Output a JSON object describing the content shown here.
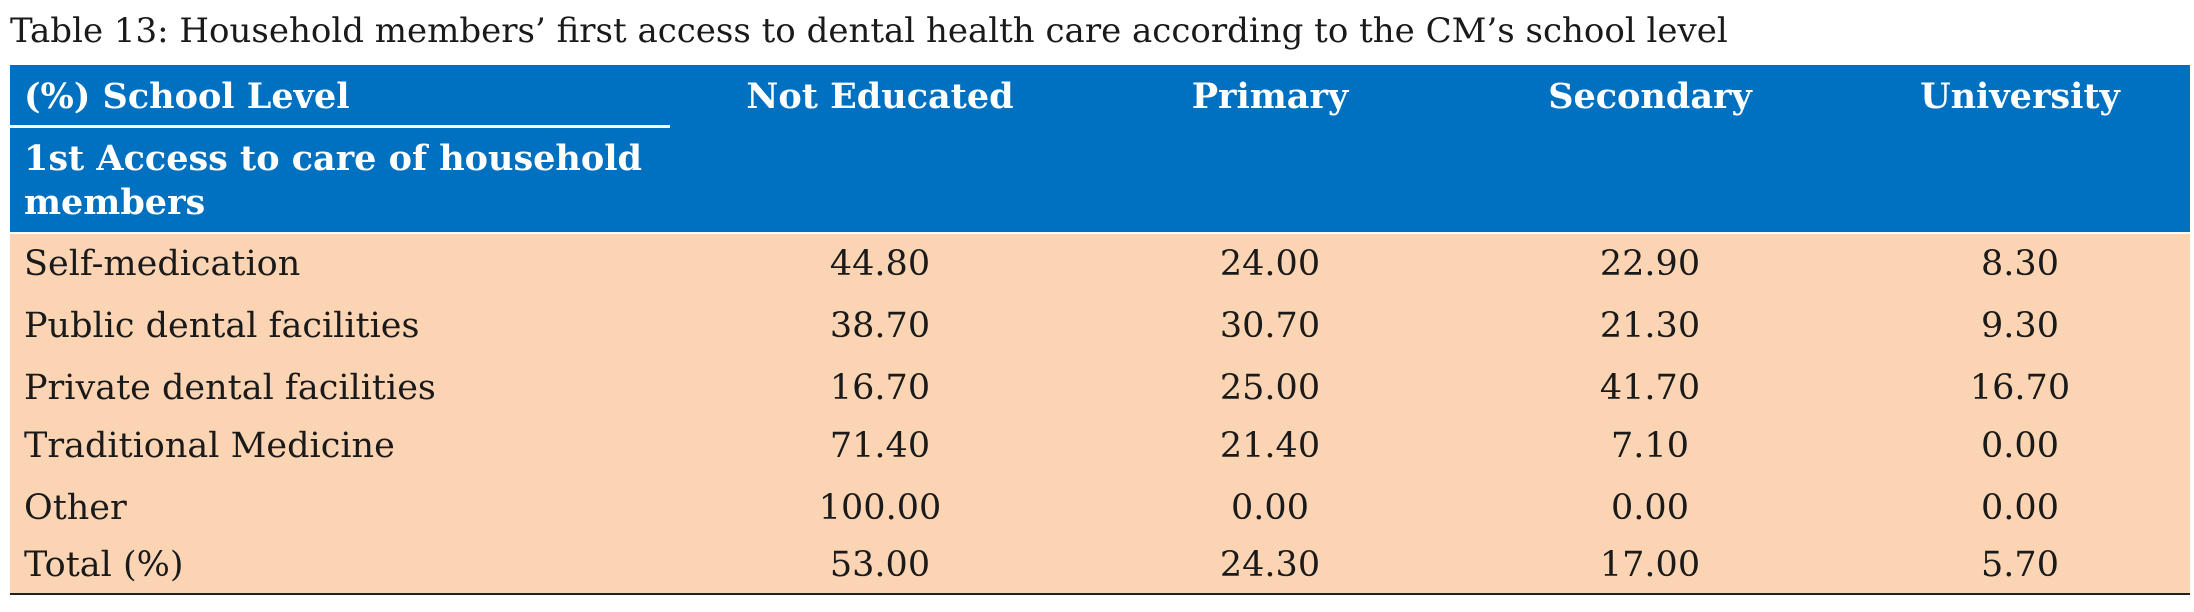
{
  "caption": "Table 13: Household members’ first access to dental health care according to the CM’s school level",
  "header": {
    "corner_top": "(%) School Level",
    "corner_bottom": "1st Access to care of household members",
    "columns": [
      "Not Educated",
      "Primary",
      "Secondary",
      "University"
    ]
  },
  "rows": [
    {
      "label": "Self-medication",
      "values": [
        "44.80",
        "24.00",
        "22.90",
        "8.30"
      ]
    },
    {
      "label": "Public dental facilities",
      "values": [
        "38.70",
        "30.70",
        "21.30",
        "9.30"
      ]
    },
    {
      "label": "Private dental facilities",
      "values": [
        "16.70",
        "25.00",
        "41.70",
        "16.70"
      ]
    },
    {
      "label": "Traditional Medicine",
      "values": [
        "71.40",
        "21.40",
        "7.10",
        "0.00"
      ]
    },
    {
      "label": "Other",
      "values": [
        "100.00",
        "0.00",
        "0.00",
        "0.00"
      ]
    },
    {
      "label": "Total (%)",
      "values": [
        "53.00",
        "24.30",
        "17.00",
        "5.70"
      ]
    }
  ],
  "colors": {
    "header_bg": "#0070c0",
    "body_bg": "#fbd4b4",
    "header_text": "#ffffff"
  }
}
